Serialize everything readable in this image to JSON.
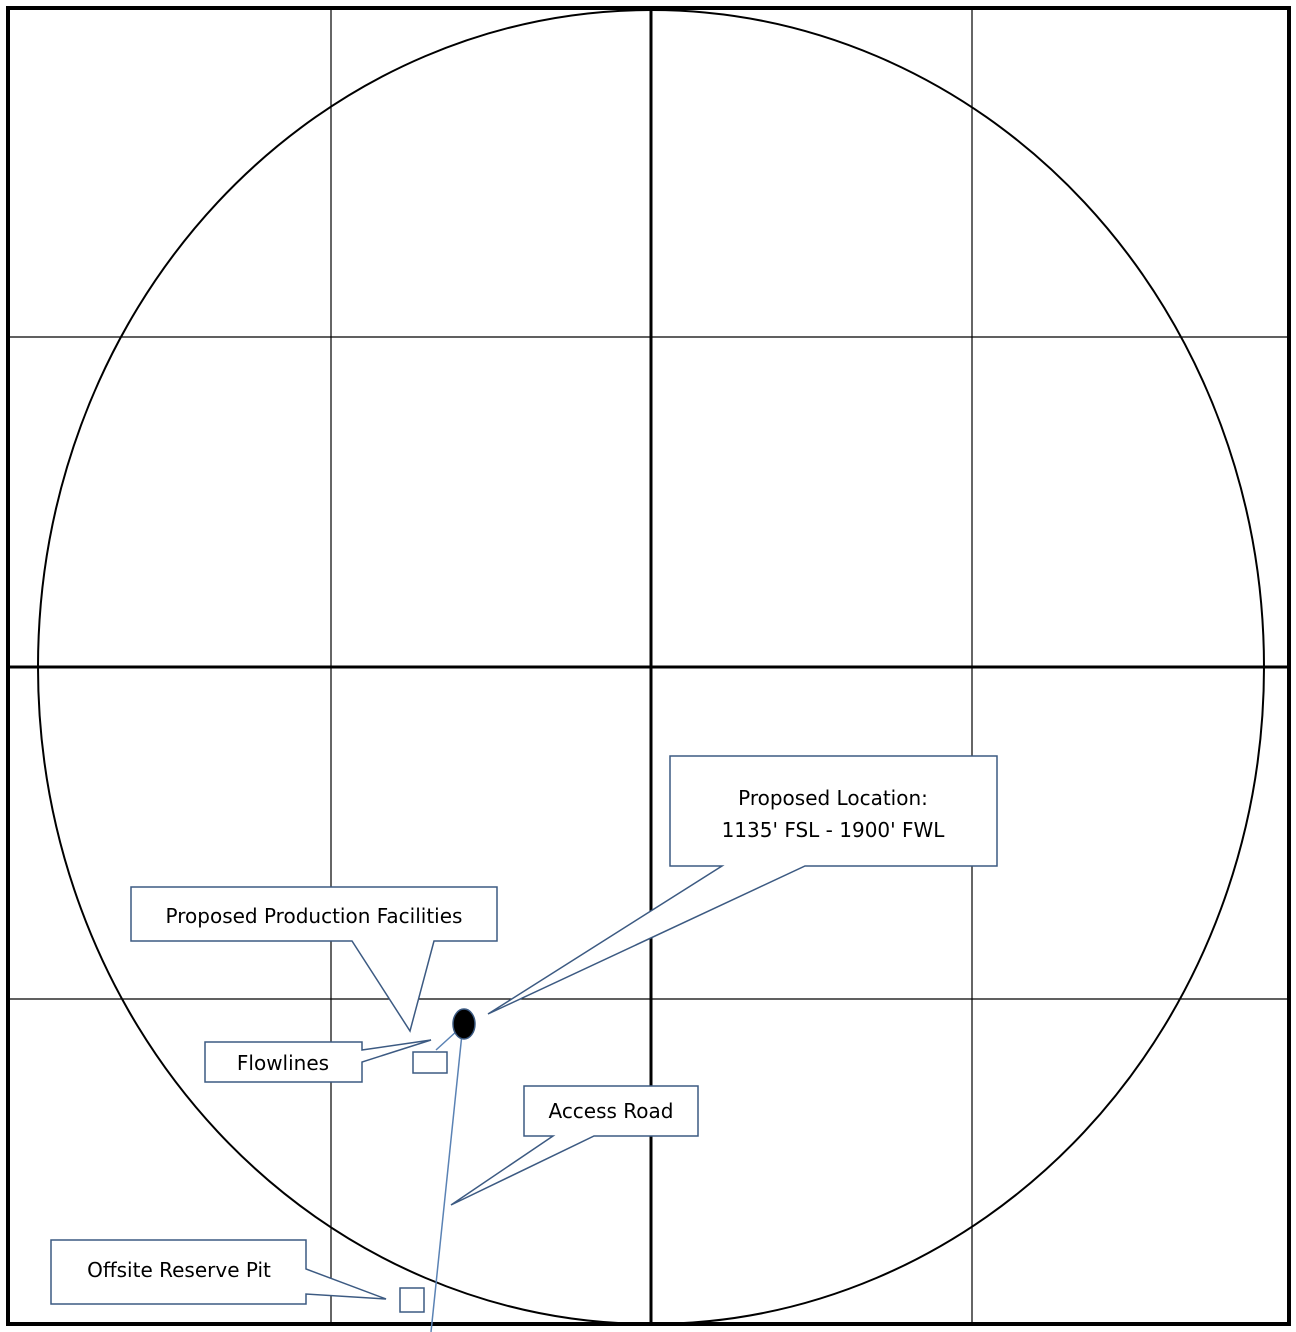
{
  "callouts": {
    "proposed_location": {
      "line1": "Proposed Location:",
      "line2": "1135' FSL - 1900' FWL"
    },
    "production_facilities": {
      "label": "Proposed Production Facilities"
    },
    "flowlines": {
      "label": "Flowlines"
    },
    "access_road": {
      "label": "Access Road"
    },
    "offsite_reserve_pit": {
      "label": "Offsite Reserve Pit"
    }
  },
  "colors": {
    "grid_line": "#000000",
    "callout_border": "#3c5a82",
    "road_line": "#5a82b4",
    "well_marker": "#000000"
  }
}
